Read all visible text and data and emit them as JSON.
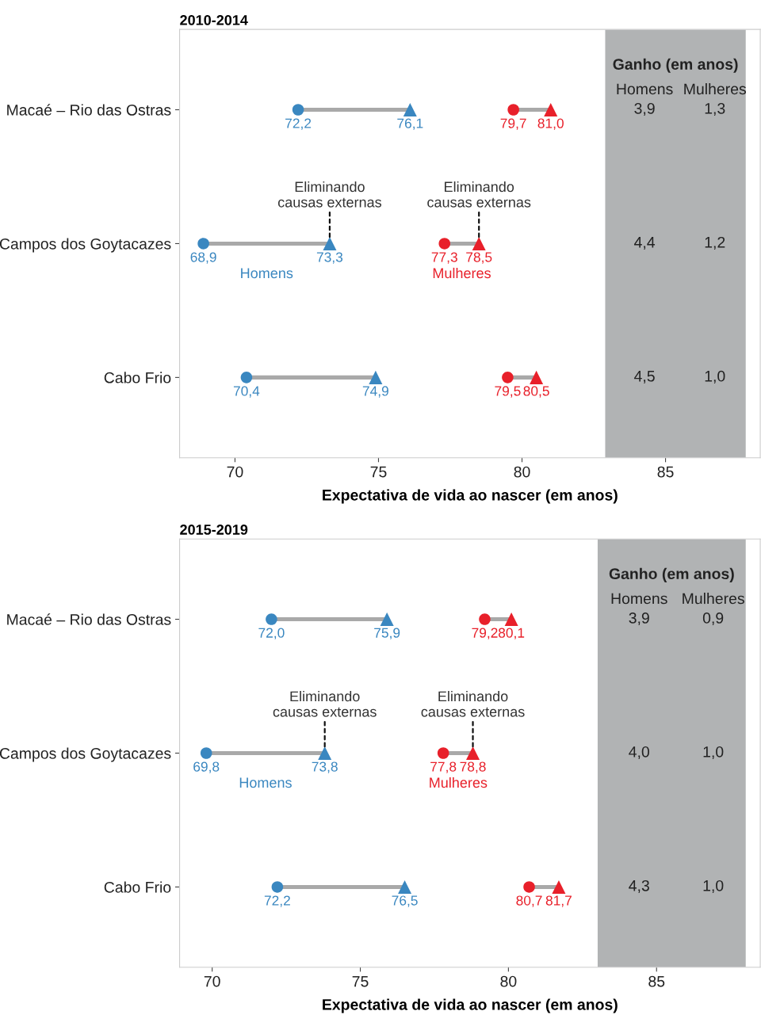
{
  "chart_data": [
    {
      "type": "scatter",
      "title": "2010-2014",
      "xlabel": "Expectativa de vida ao nascer (em anos)",
      "orientation": "horizontal",
      "categories": [
        "Macaé – Rio das Ostras",
        "Campos dos Goytacazes",
        "Cabo Frio"
      ],
      "xlim": [
        68.07,
        88.3
      ],
      "xticks": [
        70,
        75,
        80,
        85
      ],
      "legend": false,
      "grid": false,
      "series": [
        {
          "type": "bar",
          "color": "#a9a9a9",
          "base": [
            72.2,
            68.9,
            70.4
          ],
          "values": [
            3.9,
            4.4,
            4.5
          ],
          "value_labels": [
            "3,9",
            "4,4",
            "4,5"
          ]
        },
        {
          "type": "bar",
          "color": "#a9a9a9",
          "base": [
            79.7,
            77.3,
            79.5
          ],
          "values": [
            1.3,
            1.2,
            1.0
          ],
          "value_labels": [
            "1,3",
            "1,2",
            "1,0"
          ]
        },
        {
          "name": "Homens",
          "color": "#3a87c0",
          "marker": "circle",
          "values": [
            72.2,
            68.9,
            70.4
          ],
          "value_labels": [
            "72,2",
            "68,9",
            "70,4"
          ]
        },
        {
          "color": "#3a87c0",
          "marker": "triangle",
          "values": [
            76.1,
            73.3,
            74.9
          ],
          "value_labels": [
            "76,1",
            "73,3",
            "74,9"
          ]
        },
        {
          "name": "Mulheres",
          "color": "#e8202a",
          "marker": "circle",
          "values": [
            79.7,
            77.3,
            79.5
          ],
          "value_labels": [
            "79,7",
            "77,3",
            "79,5"
          ]
        },
        {
          "color": "#e8202a",
          "marker": "triangle",
          "values": [
            81.0,
            78.5,
            80.5
          ],
          "value_labels": [
            "81,0",
            "78,5",
            "80,5"
          ]
        }
      ],
      "annotations": [
        "Ganho (em anos)",
        "Homens",
        "Mulheres",
        {
          "text": "Eliminando\ncausas externas",
          "x": 73.3,
          "y": "Campos dos Goytacazes"
        },
        {
          "text": "Eliminando\ncausas externas",
          "x": 78.5,
          "y": "Campos dos Goytacazes"
        }
      ]
    },
    {
      "type": "scatter",
      "title": "2015-2019",
      "xlabel": "Expectativa de vida ao nascer (em anos)",
      "orientation": "horizontal",
      "categories": [
        "Macaé – Rio das Ostras",
        "Campos dos Goytacazes",
        "Cabo Frio"
      ],
      "xlim": [
        68.9,
        88.5
      ],
      "xticks": [
        70,
        75,
        80,
        85
      ],
      "legend": false,
      "grid": false,
      "series": [
        {
          "type": "bar",
          "color": "#a9a9a9",
          "base": [
            72.0,
            69.8,
            72.2
          ],
          "values": [
            3.9,
            4.0,
            4.3
          ],
          "value_labels": [
            "3,9",
            "4,0",
            "4,3"
          ]
        },
        {
          "type": "bar",
          "color": "#a9a9a9",
          "base": [
            79.2,
            77.8,
            80.7
          ],
          "values": [
            0.9,
            1.0,
            1.0
          ],
          "value_labels": [
            "0,9",
            "1,0",
            "1,0"
          ]
        },
        {
          "name": "Homens",
          "color": "#3a87c0",
          "marker": "circle",
          "values": [
            72.0,
            69.8,
            72.2
          ],
          "value_labels": [
            "72,0",
            "69,8",
            "72,2"
          ]
        },
        {
          "color": "#3a87c0",
          "marker": "triangle",
          "values": [
            75.9,
            73.8,
            76.5
          ],
          "value_labels": [
            "75,9",
            "73,8",
            "76,5"
          ]
        },
        {
          "name": "Mulheres",
          "color": "#e8202a",
          "marker": "circle",
          "values": [
            79.2,
            77.8,
            80.7
          ],
          "value_labels": [
            "79,2",
            "77,8",
            "80,7"
          ]
        },
        {
          "color": "#e8202a",
          "marker": "triangle",
          "values": [
            80.1,
            78.8,
            81.7
          ],
          "value_labels": [
            "80,1",
            "78,8",
            "81,7"
          ]
        }
      ],
      "annotations": [
        "Ganho (em anos)",
        "Homens",
        "Mulheres",
        {
          "text": "Eliminando\ncausas externas",
          "x": 73.8,
          "y": "Campos dos Goytacazes"
        },
        {
          "text": "Eliminando\ncausas externas",
          "x": 78.8,
          "y": "Campos dos Goytacazes"
        }
      ]
    }
  ]
}
